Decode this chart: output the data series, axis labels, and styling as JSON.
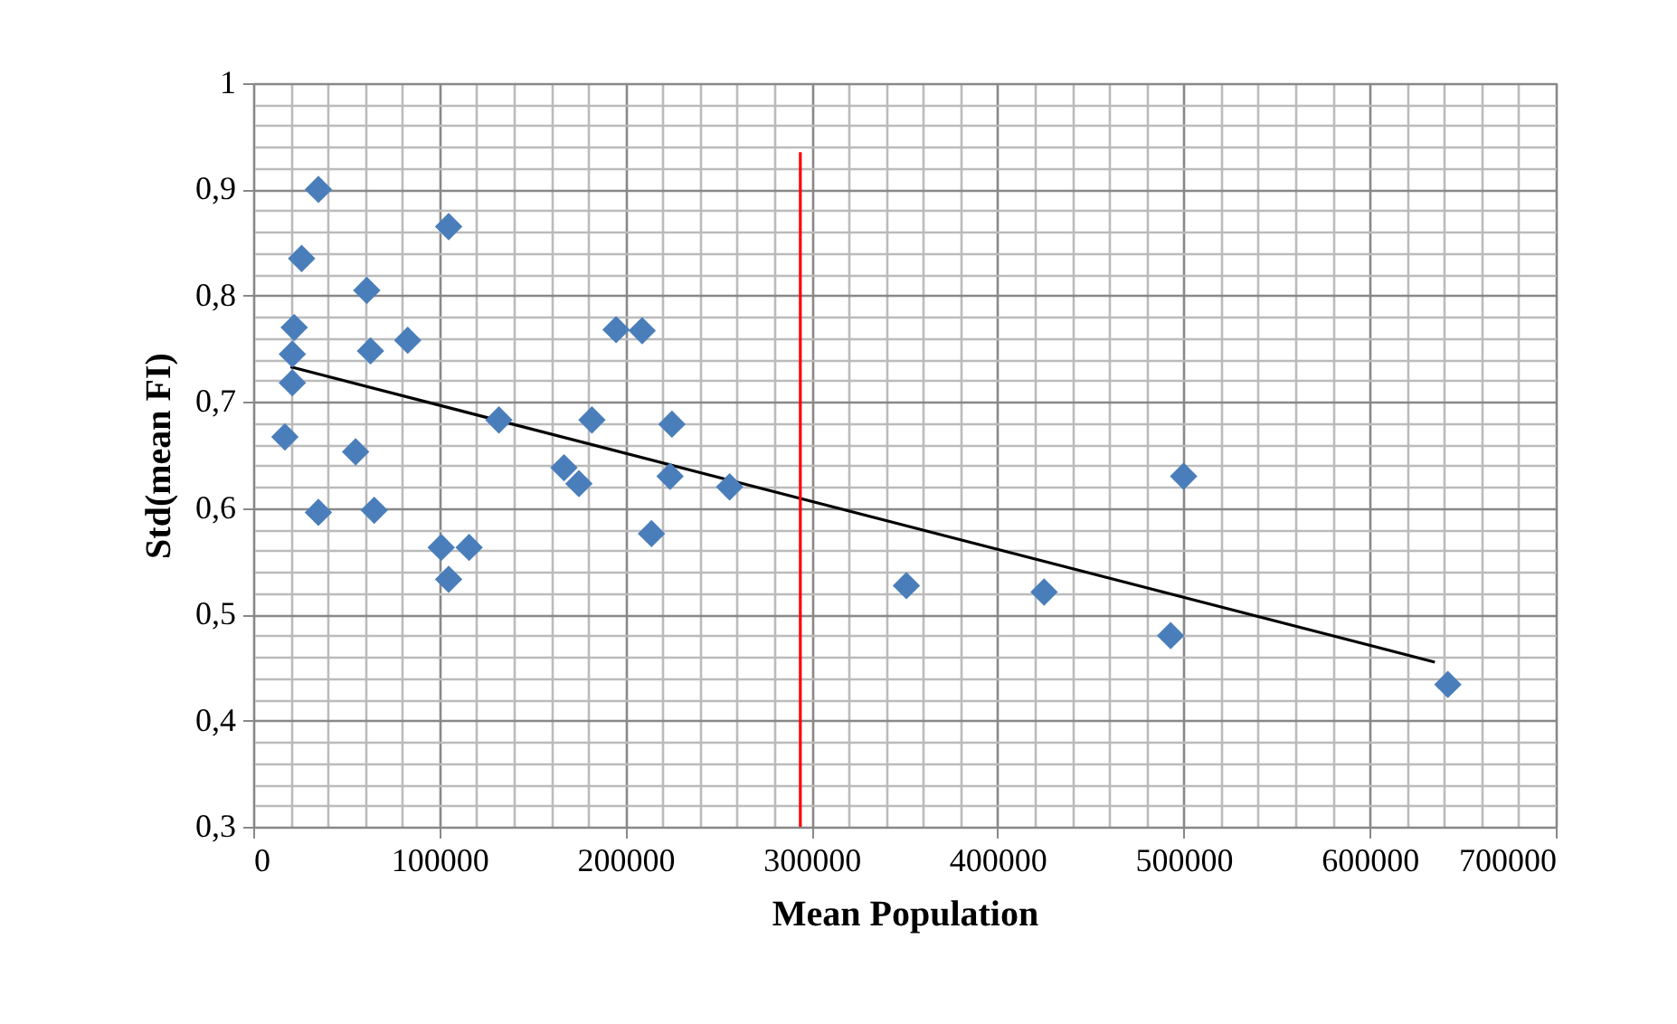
{
  "chart_data": {
    "type": "scatter",
    "xlabel": "Mean Population",
    "ylabel": "Std(mean FI)",
    "xlim": [
      0,
      700000
    ],
    "ylim": [
      0.3,
      1
    ],
    "xticks": [
      0,
      {
        "value": 20000,
        "label": null
      },
      {
        "value": 40000,
        "label": null
      },
      {
        "value": 60000,
        "label": null
      },
      {
        "value": 80000,
        "label": null
      },
      100000,
      {
        "value": 120000,
        "label": null
      },
      {
        "value": 140000,
        "label": null
      },
      {
        "value": 160000,
        "label": null
      },
      {
        "value": 180000,
        "label": null
      },
      200000,
      {
        "value": 220000,
        "label": null
      },
      {
        "value": 240000,
        "label": null
      },
      {
        "value": 260000,
        "label": null
      },
      {
        "value": 280000,
        "label": null
      },
      300000,
      {
        "value": 320000,
        "label": null
      },
      {
        "value": 340000,
        "label": null
      },
      {
        "value": 360000,
        "label": null
      },
      {
        "value": 380000,
        "label": null
      },
      400000,
      {
        "value": 420000,
        "label": null
      },
      {
        "value": 440000,
        "label": null
      },
      {
        "value": 460000,
        "label": null
      },
      {
        "value": 480000,
        "label": null
      },
      500000,
      {
        "value": 520000,
        "label": null
      },
      {
        "value": 540000,
        "label": null
      },
      {
        "value": 560000,
        "label": null
      },
      {
        "value": 580000,
        "label": null
      },
      600000,
      {
        "value": 620000,
        "label": null
      },
      {
        "value": 640000,
        "label": null
      },
      {
        "value": 660000,
        "label": null
      },
      {
        "value": 680000,
        "label": null
      },
      700000
    ],
    "yticks": [
      {
        "value": 0.3,
        "label": "0,3"
      },
      {
        "value": 0.32,
        "label": null
      },
      {
        "value": 0.34,
        "label": null
      },
      {
        "value": 0.36,
        "label": null
      },
      {
        "value": 0.38,
        "label": null
      },
      {
        "value": 0.4,
        "label": "0,4"
      },
      {
        "value": 0.42,
        "label": null
      },
      {
        "value": 0.44,
        "label": null
      },
      {
        "value": 0.46,
        "label": null
      },
      {
        "value": 0.48,
        "label": null
      },
      {
        "value": 0.5,
        "label": "0,5"
      },
      {
        "value": 0.52,
        "label": null
      },
      {
        "value": 0.54,
        "label": null
      },
      {
        "value": 0.56,
        "label": null
      },
      {
        "value": 0.58,
        "label": null
      },
      {
        "value": 0.6,
        "label": "0,6"
      },
      {
        "value": 0.62,
        "label": null
      },
      {
        "value": 0.64,
        "label": null
      },
      {
        "value": 0.66,
        "label": null
      },
      {
        "value": 0.68,
        "label": null
      },
      {
        "value": 0.7,
        "label": "0,7"
      },
      {
        "value": 0.72,
        "label": null
      },
      {
        "value": 0.74,
        "label": null
      },
      {
        "value": 0.76,
        "label": null
      },
      {
        "value": 0.78,
        "label": null
      },
      {
        "value": 0.8,
        "label": "0,8"
      },
      {
        "value": 0.82,
        "label": null
      },
      {
        "value": 0.84,
        "label": null
      },
      {
        "value": 0.86,
        "label": null
      },
      {
        "value": 0.88,
        "label": null
      },
      {
        "value": 0.9,
        "label": "0,9"
      },
      {
        "value": 0.92,
        "label": null
      },
      {
        "value": 0.94,
        "label": null
      },
      {
        "value": 0.96,
        "label": null
      },
      {
        "value": 0.98,
        "label": null
      },
      1
    ],
    "grid": true,
    "series": [
      {
        "marker": "diamond",
        "color": "#4a7ebb",
        "x": [
          35000,
          26000,
          105000,
          61000,
          22000,
          21000,
          63000,
          83000,
          132000,
          21000,
          17000,
          55000,
          35000,
          65000,
          101000,
          116000,
          105000,
          167000,
          175000,
          182000,
          195000,
          209000,
          225000,
          224000,
          214000,
          256000,
          351000,
          425000,
          493000,
          500000,
          642000
        ],
        "values": [
          0.9,
          0.835,
          0.865,
          0.805,
          0.77,
          0.745,
          0.748,
          0.758,
          0.683,
          0.718,
          0.667,
          0.653,
          0.596,
          0.598,
          0.563,
          0.563,
          0.533,
          0.638,
          0.623,
          0.683,
          0.768,
          0.767,
          0.679,
          0.63,
          0.576,
          0.62,
          0.527,
          0.521,
          0.48,
          0.63,
          0.434
        ]
      },
      {
        "type": "line",
        "color": "#000000",
        "x": [
          20000,
          635000
        ],
        "values": [
          0.733,
          0.455
        ]
      },
      {
        "type": "line",
        "color": "#ff0000",
        "x": [
          294000,
          294000
        ],
        "values": [
          0.3,
          0.935
        ]
      }
    ]
  }
}
